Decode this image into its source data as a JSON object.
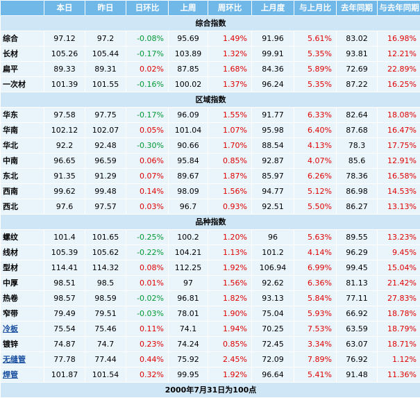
{
  "headers": [
    "",
    "本日",
    "昨日",
    "日环比",
    "上周",
    "周环比",
    "上月度",
    "与上月比",
    "去年同期",
    "与去年同期"
  ],
  "sections": [
    {
      "title": "综合指数",
      "rows": [
        {
          "name": "综合",
          "link": false,
          "cells": [
            "97.12",
            "97.2",
            "-0.08%",
            "95.69",
            "1.49%",
            "91.96",
            "5.61%",
            "83.02",
            "16.98%"
          ]
        },
        {
          "name": "长材",
          "link": false,
          "cells": [
            "105.26",
            "105.44",
            "-0.17%",
            "103.89",
            "1.32%",
            "99.91",
            "5.35%",
            "93.81",
            "12.21%"
          ]
        },
        {
          "name": "扁平",
          "link": false,
          "cells": [
            "89.33",
            "89.31",
            "0.02%",
            "87.85",
            "1.68%",
            "84.36",
            "5.89%",
            "72.69",
            "22.89%"
          ]
        },
        {
          "name": "一次材",
          "link": false,
          "cells": [
            "101.39",
            "101.55",
            "-0.16%",
            "100.02",
            "1.37%",
            "96.24",
            "5.35%",
            "87.22",
            "16.25%"
          ]
        }
      ]
    },
    {
      "title": "区域指数",
      "rows": [
        {
          "name": "华东",
          "link": false,
          "cells": [
            "97.58",
            "97.75",
            "-0.17%",
            "96.09",
            "1.55%",
            "91.77",
            "6.33%",
            "82.64",
            "18.08%"
          ]
        },
        {
          "name": "华南",
          "link": false,
          "cells": [
            "102.12",
            "102.07",
            "0.05%",
            "101.04",
            "1.07%",
            "95.98",
            "6.40%",
            "87.68",
            "16.47%"
          ]
        },
        {
          "name": "华北",
          "link": false,
          "cells": [
            "92.2",
            "92.48",
            "-0.30%",
            "90.66",
            "1.70%",
            "88.54",
            "4.13%",
            "78.3",
            "17.75%"
          ]
        },
        {
          "name": "中南",
          "link": false,
          "cells": [
            "96.65",
            "96.59",
            "0.06%",
            "95.84",
            "0.85%",
            "92.87",
            "4.07%",
            "85.6",
            "12.91%"
          ]
        },
        {
          "name": "东北",
          "link": false,
          "cells": [
            "91.35",
            "91.29",
            "0.07%",
            "89.67",
            "1.87%",
            "85.97",
            "6.26%",
            "78.36",
            "16.58%"
          ]
        },
        {
          "name": "西南",
          "link": false,
          "cells": [
            "99.62",
            "99.48",
            "0.14%",
            "98.09",
            "1.56%",
            "94.77",
            "5.12%",
            "86.98",
            "14.53%"
          ]
        },
        {
          "name": "西北",
          "link": false,
          "cells": [
            "97.6",
            "97.57",
            "0.03%",
            "96.7",
            "0.93%",
            "92.51",
            "5.50%",
            "86.27",
            "13.13%"
          ]
        }
      ]
    },
    {
      "title": "品种指数",
      "rows": [
        {
          "name": "螺纹",
          "link": false,
          "cells": [
            "101.4",
            "101.65",
            "-0.25%",
            "100.2",
            "1.20%",
            "96",
            "5.63%",
            "89.55",
            "13.23%"
          ]
        },
        {
          "name": "线材",
          "link": false,
          "cells": [
            "105.39",
            "105.62",
            "-0.22%",
            "104.21",
            "1.13%",
            "101.2",
            "4.14%",
            "96.29",
            "9.45%"
          ]
        },
        {
          "name": "型材",
          "link": false,
          "cells": [
            "114.41",
            "114.32",
            "0.08%",
            "112.25",
            "1.92%",
            "106.94",
            "6.99%",
            "99.45",
            "15.04%"
          ]
        },
        {
          "name": "中厚",
          "link": false,
          "cells": [
            "98.51",
            "98.5",
            "0.01%",
            "97",
            "1.56%",
            "92.62",
            "6.36%",
            "81.13",
            "21.42%"
          ]
        },
        {
          "name": "热卷",
          "link": false,
          "cells": [
            "98.57",
            "98.59",
            "-0.02%",
            "96.81",
            "1.82%",
            "93.13",
            "5.84%",
            "77.11",
            "27.83%"
          ]
        },
        {
          "name": "窄带",
          "link": false,
          "cells": [
            "79.49",
            "79.51",
            "-0.03%",
            "78.01",
            "1.90%",
            "75.04",
            "5.93%",
            "66.92",
            "18.78%"
          ]
        },
        {
          "name": "冷板",
          "link": true,
          "cells": [
            "75.54",
            "75.46",
            "0.11%",
            "74.1",
            "1.94%",
            "70.25",
            "7.53%",
            "63.59",
            "18.79%"
          ]
        },
        {
          "name": "镀锌",
          "link": false,
          "cells": [
            "74.87",
            "74.7",
            "0.23%",
            "74.24",
            "0.85%",
            "72.45",
            "3.34%",
            "63.07",
            "18.71%"
          ]
        },
        {
          "name": "无缝管",
          "link": true,
          "cells": [
            "77.78",
            "77.44",
            "0.44%",
            "75.92",
            "2.45%",
            "72.09",
            "7.89%",
            "76.92",
            "1.12%"
          ]
        },
        {
          "name": "焊管",
          "link": true,
          "cells": [
            "101.87",
            "101.54",
            "0.32%",
            "99.95",
            "1.92%",
            "96.64",
            "5.41%",
            "91.48",
            "11.36%"
          ]
        }
      ]
    }
  ],
  "footer": "2000年7月31日为100点",
  "colors": {
    "header_bg": "#6FB8E8",
    "section_bg": "#CFE6F6",
    "row_bg": "#E9F4FB",
    "up": "#e00000",
    "down": "#009933",
    "link": "#1a4fa0"
  }
}
